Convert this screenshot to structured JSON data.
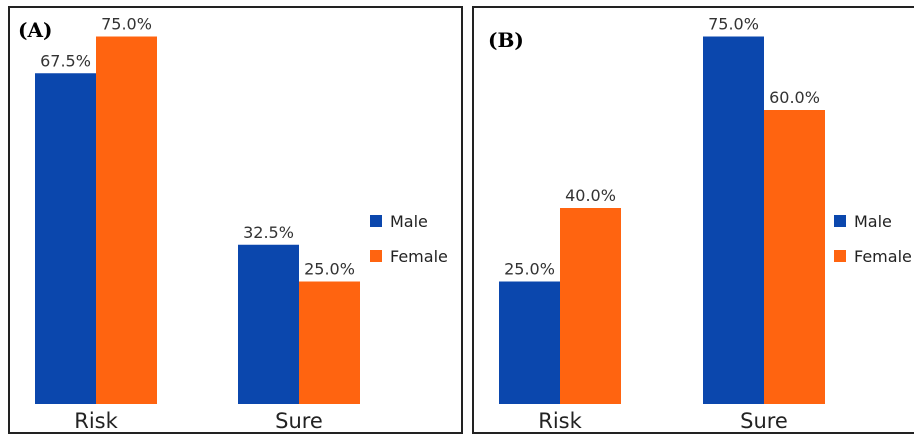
{
  "chart_data": [
    {
      "panel_label": "(A)",
      "type": "bar",
      "categories": [
        "Risk",
        "Sure"
      ],
      "series": [
        {
          "name": "Male",
          "color": "#0B47AD",
          "values": [
            67.5,
            32.5
          ],
          "labels": [
            "67.5%",
            "32.5%"
          ]
        },
        {
          "name": "Female",
          "color": "#FF6410",
          "values": [
            75.0,
            25.0
          ],
          "labels": [
            "75.0%",
            "25.0%"
          ]
        }
      ],
      "ylim": [
        0,
        85
      ],
      "grid": false,
      "legend": "right"
    },
    {
      "panel_label": "(B)",
      "type": "bar",
      "categories": [
        "Risk",
        "Sure"
      ],
      "series": [
        {
          "name": "Male",
          "color": "#0B47AD",
          "values": [
            25.0,
            75.0
          ],
          "labels": [
            "25.0%",
            "75.0%"
          ]
        },
        {
          "name": "Female",
          "color": "#FF6410",
          "values": [
            40.0,
            60.0
          ],
          "labels": [
            "40.0%",
            "60.0%"
          ]
        }
      ],
      "ylim": [
        0,
        85
      ],
      "grid": false,
      "legend": "right"
    }
  ]
}
